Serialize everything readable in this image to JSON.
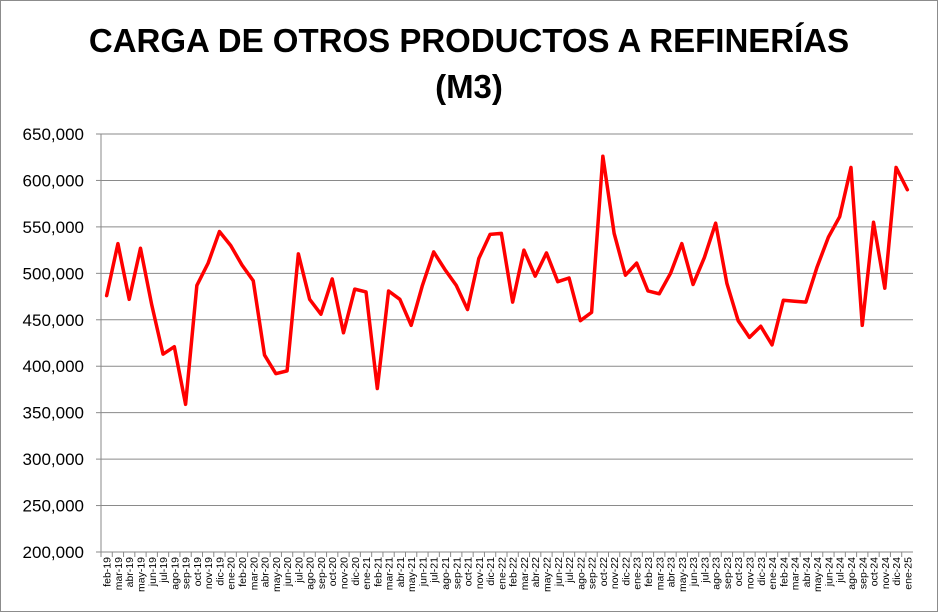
{
  "chart_data": {
    "type": "line",
    "title": "CARGA DE OTROS PRODUCTOS A REFINERÍAS",
    "subtitle": "(M3)",
    "xlabel": "",
    "ylabel": "",
    "ylim": [
      200000,
      650000
    ],
    "ytick_step": 50000,
    "ytick_labels": [
      "200,000",
      "250,000",
      "300,000",
      "350,000",
      "400,000",
      "450,000",
      "500,000",
      "550,000",
      "600,000",
      "650,000"
    ],
    "grid": true,
    "legend": "none",
    "line_color": "#ff0000",
    "categories": [
      "feb-19",
      "mar-19",
      "abr-19",
      "may-19",
      "jun-19",
      "jul-19",
      "ago-19",
      "sep-19",
      "oct-19",
      "nov-19",
      "dic-19",
      "ene-20",
      "feb-20",
      "mar-20",
      "abr-20",
      "may-20",
      "jun-20",
      "jul-20",
      "ago-20",
      "sep-20",
      "oct-20",
      "nov-20",
      "dic-20",
      "ene-21",
      "feb-21",
      "mar-21",
      "abr-21",
      "may-21",
      "jun-21",
      "jul-21",
      "ago-21",
      "sep-21",
      "oct-21",
      "nov-21",
      "dic-21",
      "ene-22",
      "feb-22",
      "mar-22",
      "abr-22",
      "may-22",
      "jun-22",
      "jul-22",
      "ago-22",
      "sep-22",
      "oct-22",
      "nov-22",
      "dic-22",
      "ene-23",
      "feb-23",
      "mar-23",
      "abr-23",
      "may-23",
      "jun-23",
      "jul-23",
      "ago-23",
      "sep-23",
      "oct-23",
      "nov-23",
      "dic-23",
      "ene-24",
      "feb-24",
      "mar-24",
      "abr-24",
      "may-24",
      "jun-24",
      "jul-24",
      "ago-24",
      "sep-24",
      "oct-24",
      "nov-24",
      "dic-24",
      "ene-25"
    ],
    "values": [
      476000,
      532000,
      472000,
      527000,
      466000,
      413000,
      421000,
      359000,
      487000,
      511000,
      545000,
      530000,
      509000,
      492000,
      412000,
      392000,
      395000,
      521000,
      472000,
      456000,
      494000,
      436000,
      483000,
      480000,
      376000,
      481000,
      472000,
      444000,
      487000,
      523000,
      504000,
      487000,
      461000,
      516000,
      542000,
      543000,
      469000,
      525000,
      497000,
      522000,
      491000,
      495000,
      449000,
      458000,
      626000,
      543000,
      498000,
      511000,
      481000,
      478000,
      500000,
      532000,
      488000,
      517000,
      554000,
      489000,
      449000,
      431000,
      443000,
      423000,
      471000,
      470000,
      469000,
      507000,
      539000,
      561000,
      614000,
      444000,
      555000,
      484000,
      614000,
      590000
    ]
  }
}
